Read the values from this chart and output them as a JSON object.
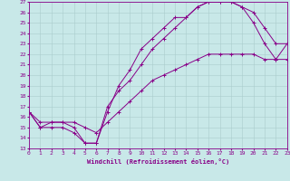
{
  "xlabel": "Windchill (Refroidissement éolien,°C)",
  "bg_color": "#c8e8e8",
  "line_color": "#880088",
  "grid_color": "#aacccc",
  "xmin": 0,
  "xmax": 23,
  "ymin": 13,
  "ymax": 27,
  "line1_x": [
    0,
    1,
    2,
    3,
    4,
    5,
    6,
    7,
    8,
    9,
    10,
    11,
    12,
    13,
    14,
    15,
    16,
    17,
    18,
    19,
    20,
    21,
    22,
    23
  ],
  "line1_y": [
    16.5,
    15.0,
    15.5,
    15.5,
    15.0,
    13.5,
    13.5,
    16.5,
    19.0,
    20.5,
    22.5,
    23.5,
    24.5,
    25.5,
    25.5,
    26.5,
    27.0,
    27.0,
    27.0,
    26.5,
    25.0,
    23.0,
    21.5,
    23.0
  ],
  "line2_x": [
    0,
    1,
    2,
    3,
    4,
    5,
    6,
    7,
    8,
    9,
    10,
    11,
    12,
    13,
    14,
    15,
    16,
    17,
    18,
    19,
    20,
    21,
    22,
    23
  ],
  "line2_y": [
    16.5,
    15.0,
    15.0,
    15.0,
    14.5,
    13.5,
    13.5,
    17.0,
    18.5,
    19.5,
    21.0,
    22.5,
    23.5,
    24.5,
    25.5,
    26.5,
    27.0,
    27.0,
    27.0,
    26.5,
    26.0,
    24.5,
    23.0,
    23.0
  ],
  "line3_x": [
    0,
    1,
    2,
    3,
    4,
    5,
    6,
    7,
    8,
    9,
    10,
    11,
    12,
    13,
    14,
    15,
    16,
    17,
    18,
    19,
    20,
    21,
    22,
    23
  ],
  "line3_y": [
    16.5,
    15.5,
    15.5,
    15.5,
    15.5,
    15.0,
    14.5,
    15.5,
    16.5,
    17.5,
    18.5,
    19.5,
    20.0,
    20.5,
    21.0,
    21.5,
    22.0,
    22.0,
    22.0,
    22.0,
    22.0,
    21.5,
    21.5,
    21.5
  ],
  "xticks": [
    0,
    1,
    2,
    3,
    4,
    5,
    6,
    7,
    8,
    9,
    10,
    11,
    12,
    13,
    14,
    15,
    16,
    17,
    18,
    19,
    20,
    21,
    22,
    23
  ],
  "yticks": [
    13,
    14,
    15,
    16,
    17,
    18,
    19,
    20,
    21,
    22,
    23,
    24,
    25,
    26,
    27
  ]
}
